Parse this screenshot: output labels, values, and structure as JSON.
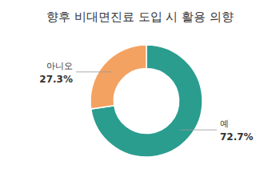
{
  "chart_data": {
    "type": "donut",
    "title": "향후 비대면진료 도입 시 활용 의향",
    "categories": [
      "예",
      "아니오"
    ],
    "values": [
      72.7,
      27.3
    ],
    "value_labels": [
      "72.7%",
      "27.3%"
    ],
    "colors": [
      "#2a9d8f",
      "#f4a261"
    ],
    "data_labels": true
  }
}
